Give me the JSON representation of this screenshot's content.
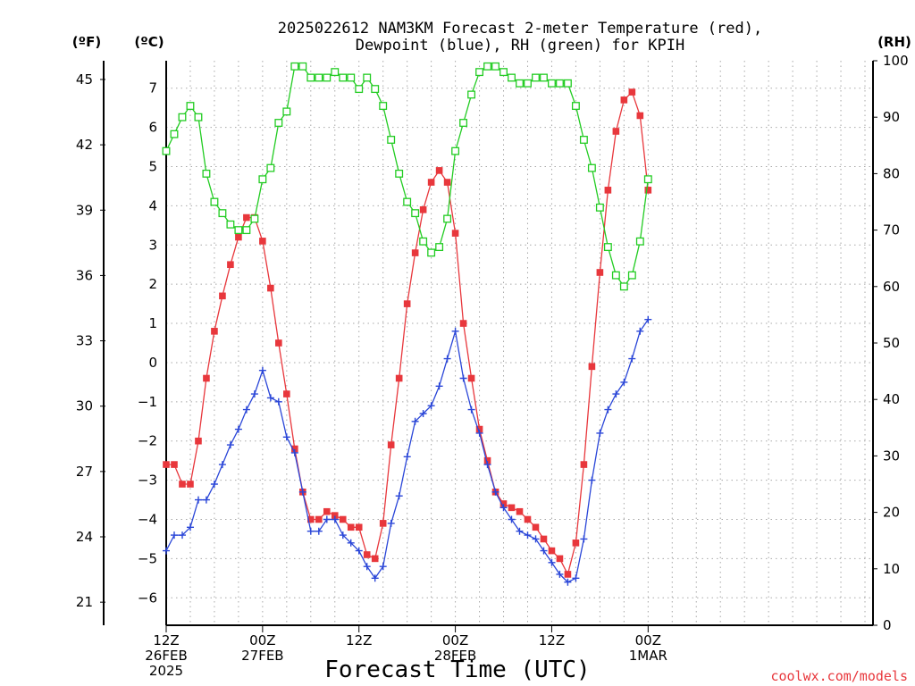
{
  "chart_data": {
    "type": "line",
    "title_lines": [
      "2025022612 NAM3KM Forecast 2-meter Temperature (red),",
      "Dewpoint (blue), RH (green) for KPIH"
    ],
    "xlabel": "Forecast Time (UTC)",
    "credit": "coolwx.com/models",
    "unit_labels": {
      "f": "(ºF)",
      "c": "(ºC)",
      "rh": "(RH)"
    },
    "x_hours": [
      0,
      88
    ],
    "x_ticks": [
      {
        "hour": 0,
        "lines": [
          "12Z",
          "26FEB",
          "2025"
        ]
      },
      {
        "hour": 12,
        "lines": [
          "00Z",
          "27FEB"
        ]
      },
      {
        "hour": 24,
        "lines": [
          "12Z"
        ]
      },
      {
        "hour": 36,
        "lines": [
          "00Z",
          "28FEB"
        ]
      },
      {
        "hour": 48,
        "lines": [
          "12Z"
        ]
      },
      {
        "hour": 60,
        "lines": [
          "00Z",
          "1MAR"
        ]
      }
    ],
    "y_celsius_range": [
      -6.7,
      7.7
    ],
    "y_celsius_ticks": [
      "-6",
      "-5",
      "-4",
      "-3",
      "-2",
      "-1",
      "0",
      "1",
      "2",
      "3",
      "4",
      "5",
      "6",
      "7"
    ],
    "y_fahrenheit_ticks": [
      "21",
      "24",
      "27",
      "30",
      "33",
      "36",
      "39",
      "42",
      "45"
    ],
    "y_rh_range": [
      0,
      100
    ],
    "y_rh_ticks": [
      "0",
      "10",
      "20",
      "30",
      "40",
      "50",
      "60",
      "70",
      "80",
      "90",
      "100"
    ],
    "grid": true,
    "x": [
      0,
      1,
      2,
      3,
      4,
      5,
      6,
      7,
      8,
      9,
      10,
      11,
      12,
      13,
      14,
      15,
      16,
      17,
      18,
      19,
      20,
      21,
      22,
      23,
      24,
      25,
      26,
      27,
      28,
      29,
      30,
      31,
      32,
      33,
      34,
      35,
      36,
      37,
      38,
      39,
      40,
      41,
      42,
      43,
      44,
      45,
      46,
      47,
      48,
      49,
      50,
      51,
      52,
      53,
      54,
      55,
      56,
      57,
      58,
      59,
      60
    ],
    "series": [
      {
        "name": "Temperature",
        "color": "#e8373c",
        "axis": "celsius",
        "marker": "filled-square",
        "values": [
          -2.6,
          -2.6,
          -3.1,
          -3.1,
          -2.0,
          -0.4,
          0.8,
          1.7,
          2.5,
          3.2,
          3.7,
          3.7,
          3.1,
          1.9,
          0.5,
          -0.8,
          -2.2,
          -3.3,
          -4.0,
          -4.0,
          -3.8,
          -3.9,
          -4.0,
          -4.2,
          -4.2,
          -4.9,
          -5.0,
          -4.1,
          -2.1,
          -0.4,
          1.5,
          2.8,
          3.9,
          4.6,
          4.9,
          4.6,
          3.3,
          1.0,
          -0.4,
          -1.7,
          -2.5,
          -3.3,
          -3.6,
          -3.7,
          -3.8,
          -4.0,
          -4.2,
          -4.5,
          -4.8,
          -5.0,
          -5.4,
          -4.6,
          -2.6,
          -0.1,
          2.3,
          4.4,
          5.9,
          6.7,
          6.9,
          6.3,
          4.4
        ]
      },
      {
        "name": "Dewpoint",
        "color": "#2a46d8",
        "axis": "celsius",
        "marker": "plus",
        "values": [
          -4.8,
          -4.4,
          -4.4,
          -4.2,
          -3.5,
          -3.5,
          -3.1,
          -2.6,
          -2.1,
          -1.7,
          -1.2,
          -0.8,
          -0.2,
          -0.9,
          -1.0,
          -1.9,
          -2.3,
          -3.3,
          -4.3,
          -4.3,
          -4.0,
          -4.0,
          -4.4,
          -4.6,
          -4.8,
          -5.2,
          -5.5,
          -5.2,
          -4.1,
          -3.4,
          -2.4,
          -1.5,
          -1.3,
          -1.1,
          -0.6,
          0.1,
          0.8,
          -0.4,
          -1.2,
          -1.8,
          -2.6,
          -3.3,
          -3.7,
          -4.0,
          -4.3,
          -4.4,
          -4.5,
          -4.8,
          -5.1,
          -5.4,
          -5.6,
          -5.5,
          -4.5,
          -3.0,
          -1.8,
          -1.2,
          -0.8,
          -0.5,
          0.1,
          0.8,
          1.1
        ]
      },
      {
        "name": "RH",
        "color": "#22cc22",
        "axis": "rh",
        "marker": "open-square",
        "values": [
          84,
          87,
          90,
          92,
          90,
          80,
          75,
          73,
          71,
          70,
          70,
          72,
          79,
          81,
          89,
          91,
          99,
          99,
          97,
          97,
          97,
          98,
          97,
          97,
          95,
          97,
          95,
          92,
          86,
          80,
          75,
          73,
          68,
          66,
          67,
          72,
          84,
          89,
          94,
          98,
          99,
          99,
          98,
          97,
          96,
          96,
          97,
          97,
          96,
          96,
          96,
          92,
          86,
          81,
          74,
          67,
          62,
          60,
          62,
          68,
          79
        ]
      }
    ]
  }
}
